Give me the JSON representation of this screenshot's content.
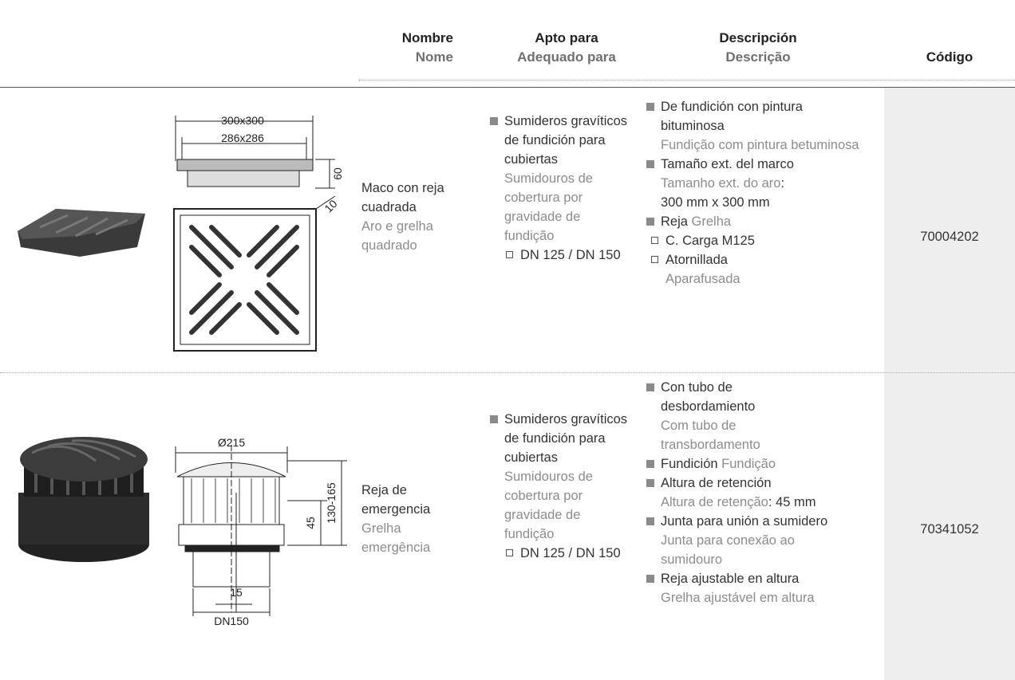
{
  "header": {
    "columns": [
      {
        "es": "Nombre",
        "pt": "Nome"
      },
      {
        "es": "Apto para",
        "pt": "Adequado para"
      },
      {
        "es": "Descripción",
        "pt": "Descrição"
      },
      {
        "es": "Código"
      }
    ]
  },
  "rows": [
    {
      "drawing_labels": [
        "300x300",
        "286x286",
        "60",
        "10"
      ],
      "name": {
        "es": "Maco con reja cuadrada",
        "pt": "Aro e grelha quadrado"
      },
      "suitable": {
        "es": "Sumideros gravíticos de fundición para cubiertas",
        "pt": "Sumidouros de cobertura por gravidade de fundição",
        "sub": "DN 125 / DN 150"
      },
      "description": [
        {
          "es": "De fundición con pintura bituminosa",
          "pt": "Fundição com pintura betuminosa"
        },
        {
          "es": "Tamaño ext. del marco",
          "pt": "Tamanho ext. do aro",
          "sep": ":",
          "value": "300 mm x 300 mm"
        },
        {
          "es": "Reja",
          "pt": "Grelha",
          "sub": [
            {
              "es": "C. Carga M125"
            },
            {
              "es": "Atornillada",
              "pt": "Aparafusada"
            }
          ]
        }
      ],
      "code": "70004202"
    },
    {
      "drawing_labels": [
        "Ø215",
        "130-165",
        "45",
        "15",
        "DN150"
      ],
      "name": {
        "es": "Reja de emergencia",
        "pt": "Grelha emergência"
      },
      "suitable": {
        "es": "Sumideros gravíticos de fundición para cubiertas",
        "pt": "Sumidouros de cobertura por gravidade de fundição",
        "sub": "DN 125 / DN 150"
      },
      "description": [
        {
          "es": "Con tubo de desbordamiento",
          "pt": "Com tubo de transbordamento"
        },
        {
          "es": "Fundición",
          "pt": "Fundição"
        },
        {
          "es": "Altura de retención",
          "pt": "Altura de retenção",
          "detail": ": 45 mm"
        },
        {
          "es": "Junta para unión a sumidero",
          "pt": "Junta para conexão ao sumidouro"
        },
        {
          "es": "Reja ajustable en altura",
          "pt": "Grelha ajustável em altura"
        }
      ],
      "code": "70341052"
    }
  ]
}
